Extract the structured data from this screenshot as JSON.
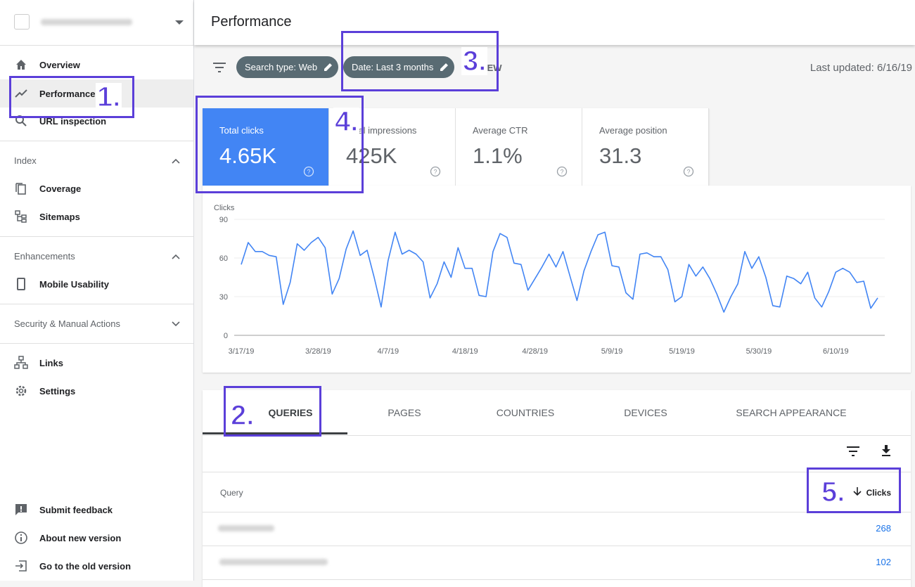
{
  "sidebar": {
    "nav": [
      "Overview",
      "Performance",
      "URL inspection"
    ],
    "sections": [
      {
        "title": "Index",
        "items": [
          "Coverage",
          "Sitemaps"
        ]
      },
      {
        "title": "Enhancements",
        "items": [
          "Mobile Usability"
        ]
      },
      {
        "title": "Security & Manual Actions",
        "items": []
      }
    ],
    "tools": [
      "Links",
      "Settings"
    ],
    "footer": [
      "Submit feedback",
      "About new version",
      "Go to the old version"
    ]
  },
  "header": {
    "title": "Performance"
  },
  "filters": {
    "chips": [
      "Search type: Web",
      "Date: Last 3 months"
    ],
    "new": "NEW",
    "last_updated": "Last updated: 6/16/19"
  },
  "metrics": [
    {
      "label": "Total clicks",
      "value": "4.65K"
    },
    {
      "label": "Total impressions",
      "value": "425K"
    },
    {
      "label": "Average CTR",
      "value": "1.1%"
    },
    {
      "label": "Average position",
      "value": "31.3"
    }
  ],
  "chart_data": {
    "type": "line",
    "ylabel": "Clicks",
    "color": "#4285f4",
    "grid": true,
    "x": [
      "3/17/19",
      "3/18/19",
      "3/19/19",
      "3/20/19",
      "3/21/19",
      "3/22/19",
      "3/23/19",
      "3/24/19",
      "3/25/19",
      "3/26/19",
      "3/27/19",
      "3/28/19",
      "3/29/19",
      "3/30/19",
      "3/31/19",
      "4/1/19",
      "4/2/19",
      "4/3/19",
      "4/4/19",
      "4/5/19",
      "4/6/19",
      "4/7/19",
      "4/8/19",
      "4/9/19",
      "4/10/19",
      "4/11/19",
      "4/12/19",
      "4/13/19",
      "4/14/19",
      "4/15/19",
      "4/16/19",
      "4/17/19",
      "4/18/19",
      "4/19/19",
      "4/20/19",
      "4/21/19",
      "4/22/19",
      "4/23/19",
      "4/24/19",
      "4/25/19",
      "4/26/19",
      "4/27/19",
      "4/28/19",
      "4/29/19",
      "4/30/19",
      "5/1/19",
      "5/2/19",
      "5/3/19",
      "5/4/19",
      "5/5/19",
      "5/6/19",
      "5/7/19",
      "5/8/19",
      "5/9/19",
      "5/10/19",
      "5/11/19",
      "5/12/19",
      "5/13/19",
      "5/14/19",
      "5/15/19",
      "5/16/19",
      "5/17/19",
      "5/18/19",
      "5/19/19",
      "5/20/19",
      "5/21/19",
      "5/22/19",
      "5/23/19",
      "5/24/19",
      "5/25/19",
      "5/26/19",
      "5/27/19",
      "5/28/19",
      "5/29/19",
      "5/30/19",
      "5/31/19",
      "6/1/19",
      "6/2/19",
      "6/3/19",
      "6/4/19",
      "6/5/19",
      "6/6/19",
      "6/7/19",
      "6/8/19",
      "6/9/19",
      "6/10/19",
      "6/11/19",
      "6/12/19",
      "6/13/19",
      "6/14/19",
      "6/15/19",
      "6/16/19"
    ],
    "values": [
      55,
      72,
      65,
      65,
      62,
      61,
      24,
      41,
      71,
      66,
      72,
      76,
      68,
      32,
      44,
      67,
      81,
      62,
      66,
      45,
      22,
      58,
      80,
      63,
      66,
      63,
      57,
      29,
      40,
      57,
      45,
      68,
      52,
      52,
      31,
      30,
      65,
      79,
      76,
      56,
      55,
      35,
      44,
      53,
      63,
      53,
      65,
      46,
      27,
      50,
      65,
      78,
      80,
      54,
      53,
      33,
      28,
      63,
      64,
      61,
      61,
      51,
      26,
      30,
      55,
      46,
      53,
      44,
      32,
      18,
      30,
      40,
      65,
      52,
      61,
      45,
      23,
      22,
      46,
      44,
      40,
      49,
      29,
      22,
      34,
      49,
      52,
      49,
      41,
      42,
      21,
      29
    ],
    "ylim": [
      0,
      90
    ],
    "yticks": [
      0,
      30,
      60,
      90
    ],
    "xticks": [
      "3/17/19",
      "3/28/19",
      "4/7/19",
      "4/18/19",
      "4/28/19",
      "5/9/19",
      "5/19/19",
      "5/30/19",
      "6/10/19"
    ]
  },
  "table": {
    "tabs": [
      "QUERIES",
      "PAGES",
      "COUNTRIES",
      "DEVICES",
      "SEARCH APPEARANCE"
    ],
    "columns": [
      "Query",
      "Clicks"
    ],
    "clicks": [
      268,
      102
    ]
  },
  "annotations": [
    "1.",
    "2.",
    "3.",
    "4.",
    "5."
  ]
}
